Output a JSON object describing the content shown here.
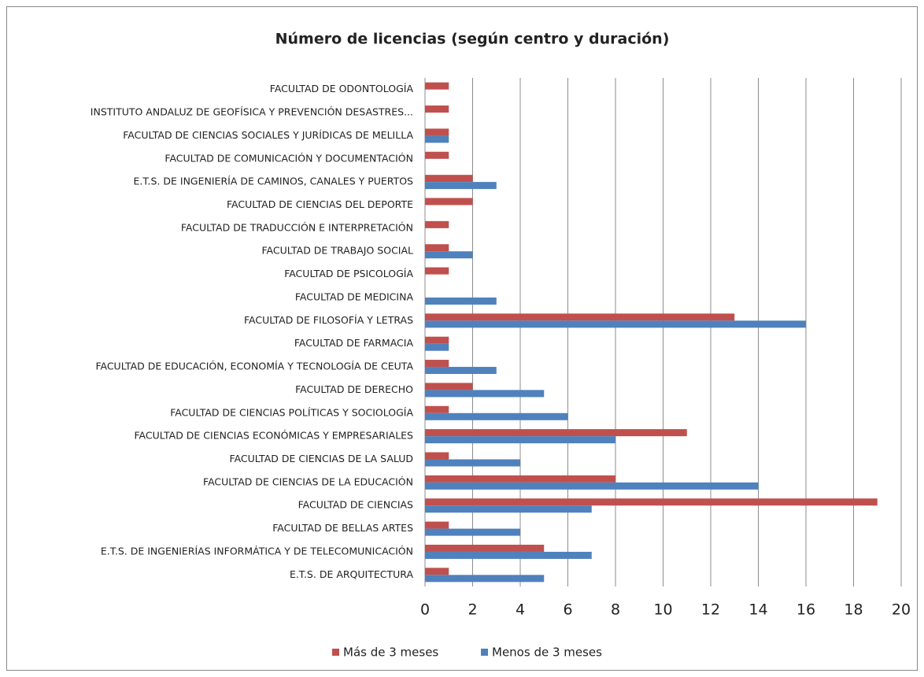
{
  "chart_data": {
    "type": "bar",
    "orientation": "horizontal",
    "title": "Número de licencias (según centro y duración)",
    "categories": [
      "FACULTAD DE ODONTOLOGÍA",
      "INSTITUTO ANDALUZ DE GEOFÍSICA Y PREVENCIÓN DESASTRES...",
      "FACULTAD DE CIENCIAS SOCIALES Y JURÍDICAS DE MELILLA",
      "FACULTAD DE COMUNICACIÓN Y DOCUMENTACIÓN",
      "E.T.S. DE INGENIERÍA DE CAMINOS, CANALES Y PUERTOS",
      "FACULTAD DE CIENCIAS DEL DEPORTE",
      "FACULTAD DE TRADUCCIÓN E INTERPRETACIÓN",
      "FACULTAD DE TRABAJO SOCIAL",
      "FACULTAD DE PSICOLOGÍA",
      "FACULTAD DE MEDICINA",
      "FACULTAD DE FILOSOFÍA Y LETRAS",
      "FACULTAD DE FARMACIA",
      "FACULTAD DE EDUCACIÓN, ECONOMÍA Y TECNOLOGÍA DE CEUTA",
      "FACULTAD DE DERECHO",
      "FACULTAD DE CIENCIAS POLÍTICAS Y SOCIOLOGÍA",
      "FACULTAD DE CIENCIAS ECONÓMICAS Y EMPRESARIALES",
      "FACULTAD DE CIENCIAS DE LA SALUD",
      "FACULTAD DE CIENCIAS DE LA EDUCACIÓN",
      "FACULTAD DE CIENCIAS",
      "FACULTAD DE BELLAS ARTES",
      "E.T.S. DE INGENIERÍAS INFORMÁTICA Y DE TELECOMUNICACIÓN",
      "E.T.S. DE ARQUITECTURA"
    ],
    "series": [
      {
        "name": "Más de 3 meses",
        "color": "#c0504d",
        "values": [
          1,
          1,
          1,
          1,
          2,
          2,
          1,
          1,
          1,
          null,
          13,
          1,
          1,
          2,
          1,
          11,
          1,
          8,
          19,
          1,
          5,
          1
        ]
      },
      {
        "name": "Menos de 3 meses",
        "color": "#4f81bd",
        "values": [
          null,
          null,
          1,
          null,
          3,
          null,
          null,
          2,
          null,
          3,
          16,
          1,
          3,
          5,
          6,
          8,
          4,
          14,
          7,
          4,
          7,
          5
        ]
      }
    ],
    "xlim": [
      0,
      20
    ],
    "xticks": [
      0,
      2,
      4,
      6,
      8,
      10,
      12,
      14,
      16,
      18,
      20
    ],
    "grid": true,
    "legend": "bottom"
  }
}
